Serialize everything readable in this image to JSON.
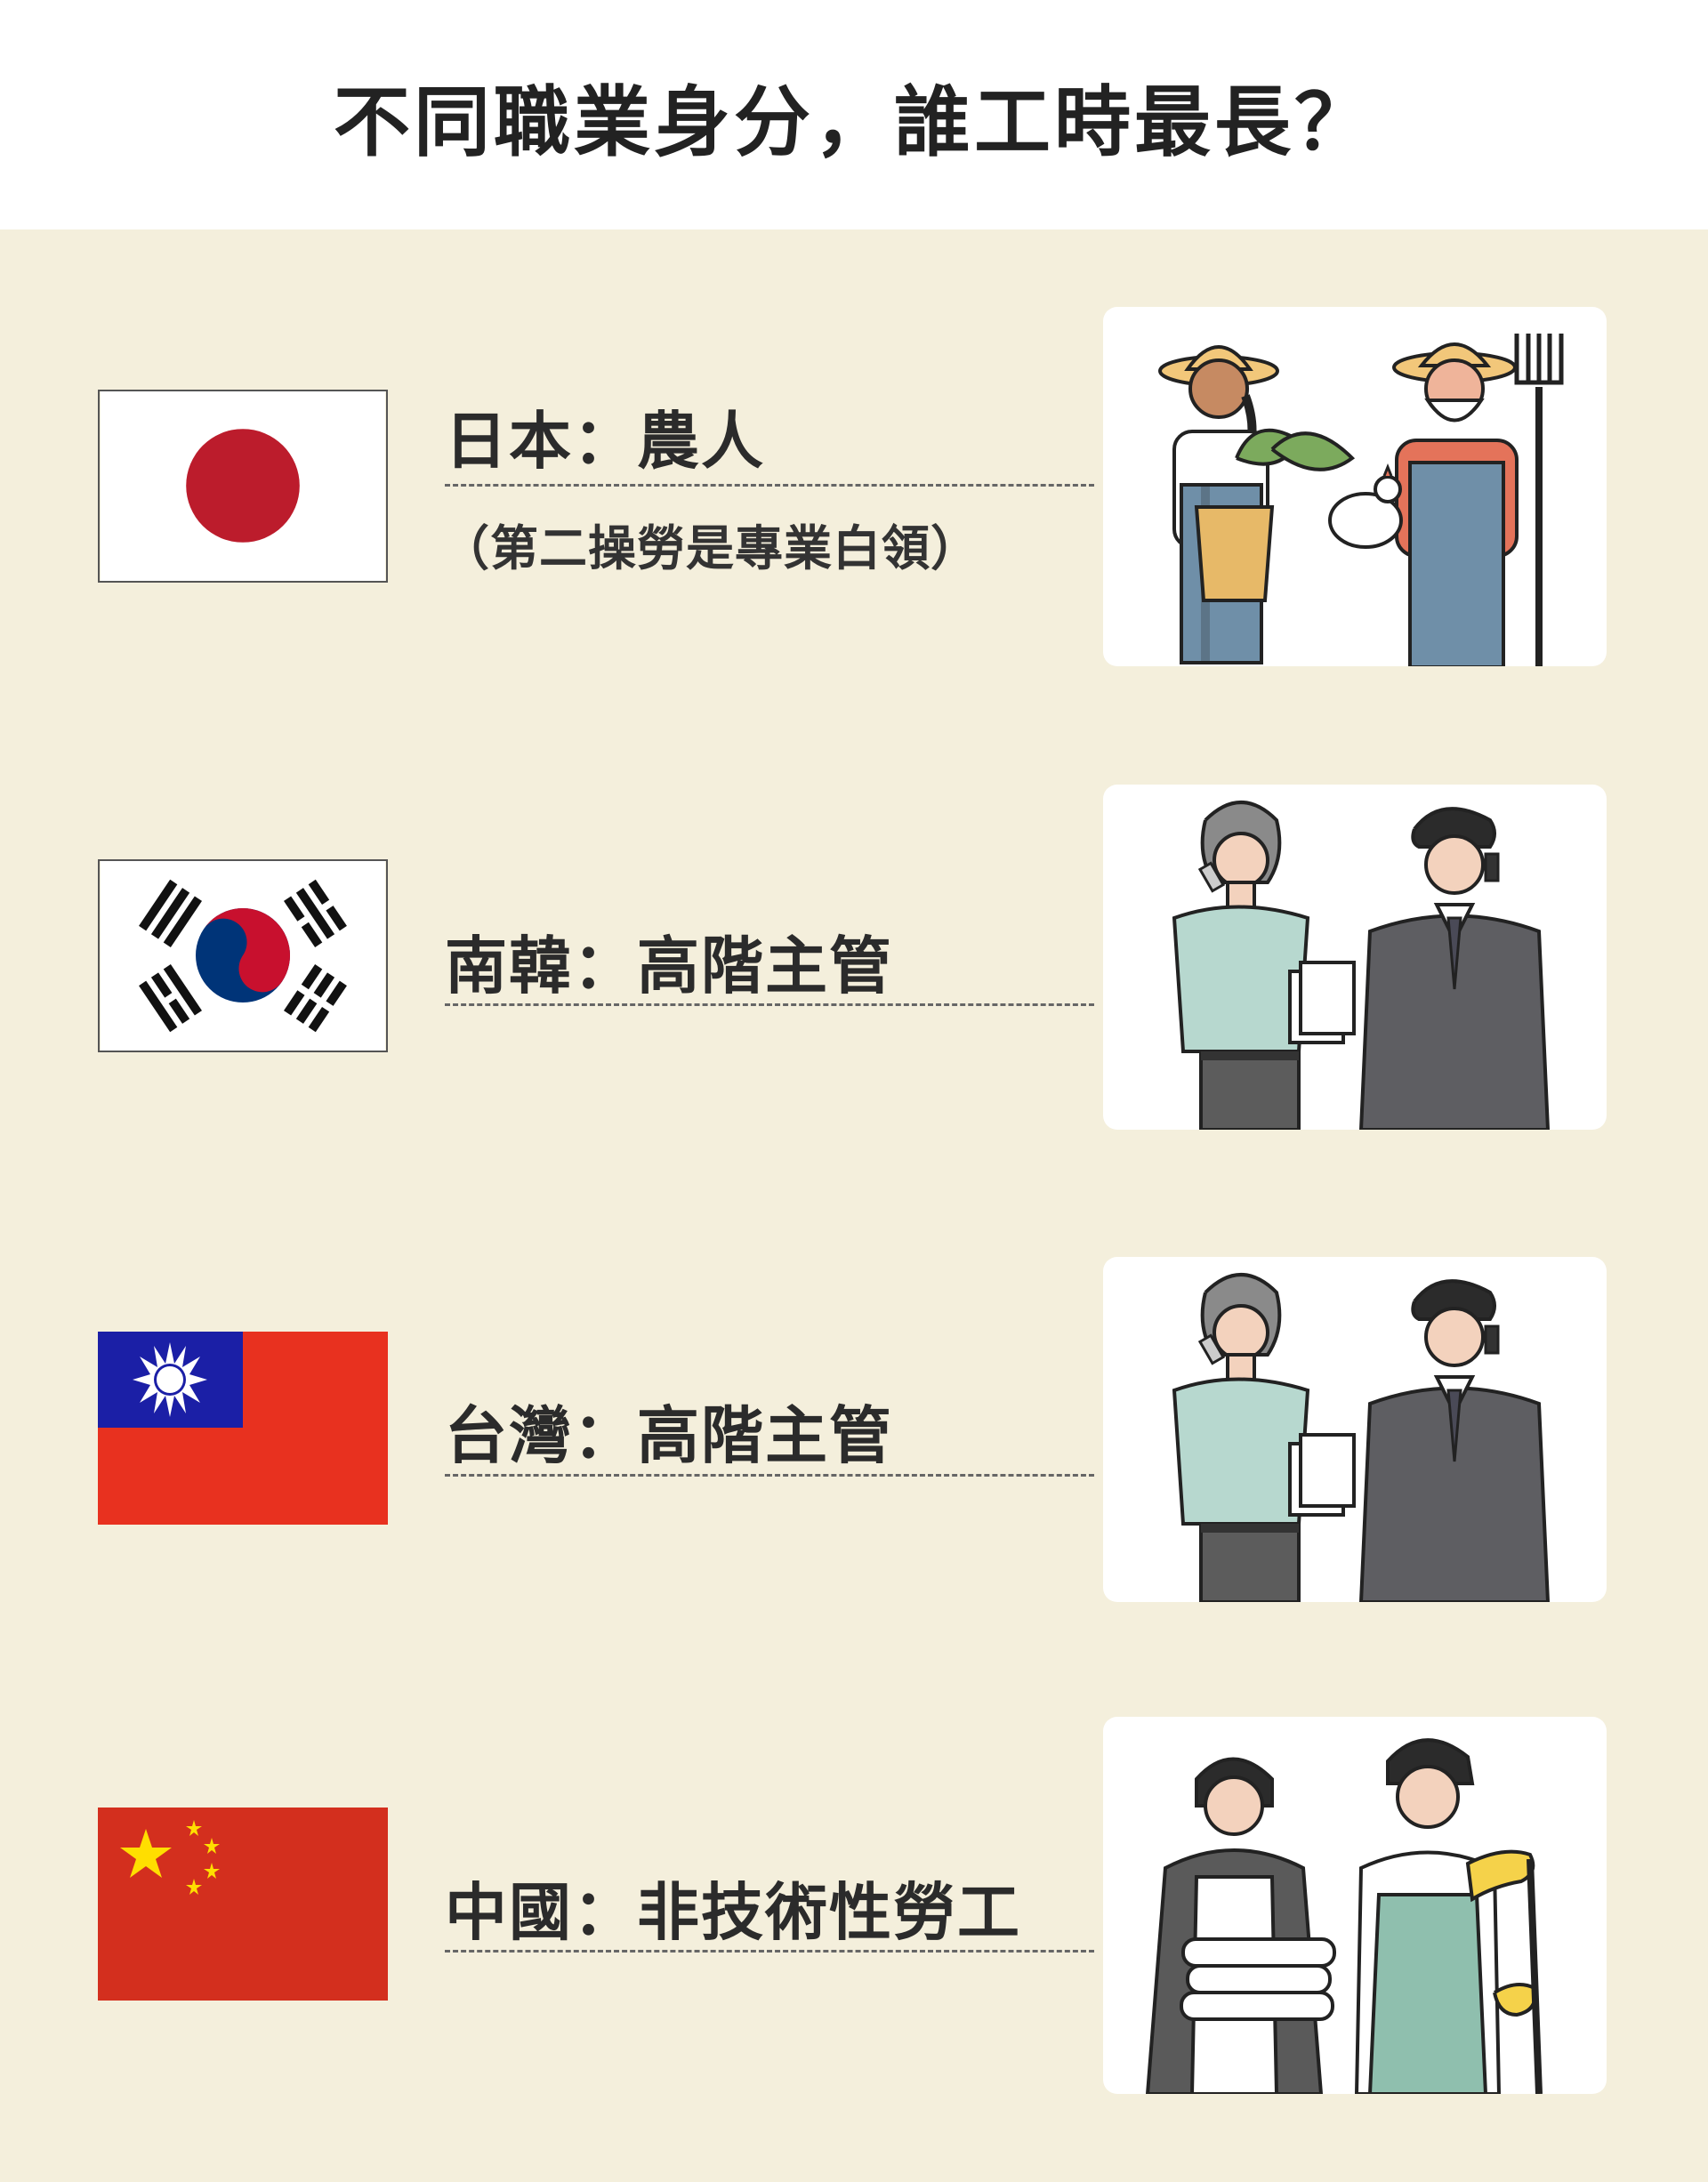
{
  "title": "不同職業身分，誰工時最長？",
  "rows": [
    {
      "label": "日本：農人",
      "note": "（第二操勞是專業白領）",
      "flag_icon": "japan-flag",
      "illustration": "farmers-illustration"
    },
    {
      "label": "南韓：高階主管",
      "flag_icon": "south-korea-flag",
      "illustration": "executives-illustration"
    },
    {
      "label": "台灣：高階主管",
      "flag_icon": "taiwan-flag",
      "illustration": "executives-illustration"
    },
    {
      "label": "中國：非技術性勞工",
      "flag_icon": "china-flag",
      "illustration": "unskilled-workers-illustration"
    }
  ],
  "colors": {
    "background": "#f4efdc",
    "japan_red": "#bc1c2c",
    "korea_red": "#c8102e",
    "korea_blue": "#003478",
    "taiwan_red": "#e8311f",
    "taiwan_blue": "#1b1fa6",
    "china_red": "#d32f1e",
    "china_yellow": "#ffde00"
  }
}
